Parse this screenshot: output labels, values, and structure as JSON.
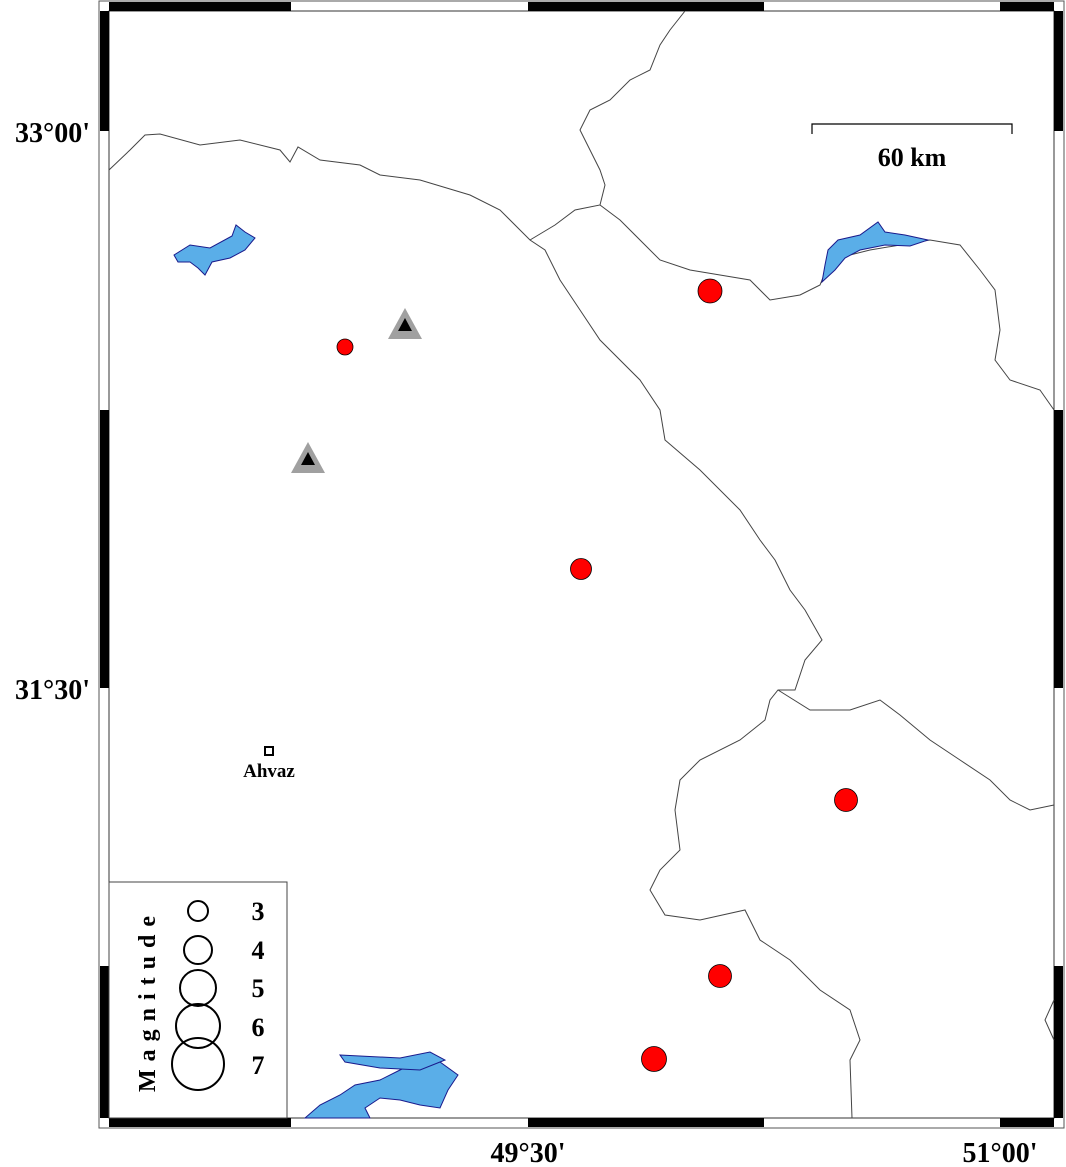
{
  "map": {
    "lat_labels": [
      "33°00'",
      "31°30'"
    ],
    "lon_labels": [
      "49°30'",
      "51°00'"
    ],
    "scale_bar": {
      "label": "60 km"
    },
    "city": {
      "name": "Ahvaz"
    },
    "colors": {
      "event": "#ff0000",
      "station": "#000000",
      "station_halo": "#a0a0a0",
      "water": "#5aaee8",
      "water_outline": "#1a1a8c",
      "boundary": "#444444"
    },
    "events": [
      {
        "id": "e1",
        "magnitude": 5.5
      },
      {
        "id": "e2",
        "magnitude": 3.5
      },
      {
        "id": "e3",
        "magnitude": 4.5
      },
      {
        "id": "e4",
        "magnitude": 5
      },
      {
        "id": "e5",
        "magnitude": 5
      },
      {
        "id": "e6",
        "magnitude": 5.5
      }
    ],
    "stations": [
      {
        "id": "s1",
        "icon": "triangle-icon"
      },
      {
        "id": "s2",
        "icon": "triangle-icon"
      }
    ]
  },
  "legend": {
    "title": "Magnitude",
    "items": [
      {
        "label": "3"
      },
      {
        "label": "4"
      },
      {
        "label": "5"
      },
      {
        "label": "6"
      },
      {
        "label": "7"
      }
    ]
  }
}
